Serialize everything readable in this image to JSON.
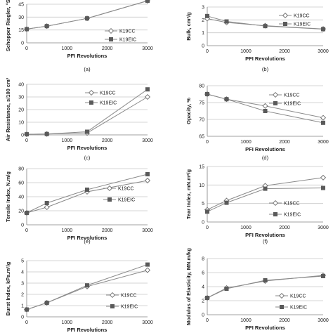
{
  "chart_data": [
    {
      "type": "line",
      "panel_label": "(a)",
      "xlabel": "PFI Revolutions",
      "ylabel": "Schopper Riegler, °SR",
      "xlim": [
        0,
        3000
      ],
      "ylim": [
        0,
        45
      ],
      "xticks": [
        "0",
        "1000",
        "2000",
        "3000"
      ],
      "yticks": [
        "0",
        "15",
        "30",
        "45"
      ],
      "x": [
        0,
        500,
        1500,
        3000
      ],
      "series": [
        {
          "name": "K19CC",
          "marker": "diamond",
          "values": [
            16,
            19.5,
            28.5,
            49
          ]
        },
        {
          "name": "K19EIC",
          "marker": "square",
          "values": [
            16,
            19.5,
            28.5,
            49
          ]
        }
      ],
      "legend": "right",
      "grid": true
    },
    {
      "type": "line",
      "panel_label": "(b)",
      "xlabel": "PFI Revolutions",
      "ylabel": "Bulk, cm³/g",
      "xlim": [
        0,
        3000
      ],
      "ylim": [
        0,
        3
      ],
      "xticks": [
        "0",
        "1000",
        "2000",
        "3000"
      ],
      "yticks": [
        "0",
        "1",
        "2",
        "3"
      ],
      "x": [
        0,
        500,
        1500,
        3000
      ],
      "series": [
        {
          "name": "K19CC",
          "marker": "diamond",
          "values": [
            2.1,
            1.8,
            1.55,
            1.3
          ]
        },
        {
          "name": "K19EIC",
          "marker": "square",
          "values": [
            2.3,
            1.88,
            1.52,
            1.28
          ]
        }
      ],
      "legend": "right",
      "grid": true
    },
    {
      "type": "line",
      "panel_label": "(c)",
      "xlabel": "PFI Revolutions",
      "ylabel": "Air Resistance, s/100 cm³",
      "xlim": [
        0,
        3000
      ],
      "ylim": [
        0,
        40
      ],
      "xticks": [
        "0",
        "1000",
        "2000",
        "3000"
      ],
      "yticks": [
        "0",
        "10",
        "20",
        "30",
        "40"
      ],
      "x": [
        0,
        500,
        1500,
        3000
      ],
      "series": [
        {
          "name": "K19CC",
          "marker": "diamond",
          "values": [
            0.5,
            0.7,
            1.5,
            30
          ]
        },
        {
          "name": "K19EIC",
          "marker": "square",
          "values": [
            0.5,
            0.7,
            2.5,
            36
          ]
        }
      ],
      "legend": "top-left",
      "grid": true
    },
    {
      "type": "line",
      "panel_label": "(d)",
      "xlabel": "PFI Revolutions",
      "ylabel": "Opacity, %",
      "xlim": [
        0,
        3000
      ],
      "ylim": [
        65,
        80
      ],
      "xticks": [
        "0",
        "1000",
        "2000",
        "3000"
      ],
      "yticks": [
        "65",
        "70",
        "75",
        "80"
      ],
      "x": [
        0,
        500,
        1500,
        3000
      ],
      "series": [
        {
          "name": "K19CC",
          "marker": "diamond",
          "values": [
            77.5,
            76,
            74,
            70.5
          ]
        },
        {
          "name": "K19EIC",
          "marker": "square",
          "values": [
            77.5,
            76,
            72.5,
            69
          ]
        }
      ],
      "legend": "right",
      "grid": true
    },
    {
      "type": "line",
      "panel_label": "(e)",
      "xlabel": "PFI Revolutions",
      "ylabel": "Tensile Index, N.m/g",
      "xlim": [
        0,
        3000
      ],
      "ylim": [
        0,
        80
      ],
      "xticks": [
        "0",
        "1000",
        "2000",
        "3000"
      ],
      "yticks": [
        "0",
        "20",
        "40",
        "60",
        "80"
      ],
      "x": [
        0,
        500,
        1500,
        3000
      ],
      "series": [
        {
          "name": "K19CC",
          "marker": "diamond",
          "values": [
            17,
            25,
            47,
            63
          ]
        },
        {
          "name": "K19EIC",
          "marker": "square",
          "values": [
            17,
            31,
            50,
            72
          ]
        }
      ],
      "legend": "right",
      "grid": true
    },
    {
      "type": "line",
      "panel_label": "(f)",
      "xlabel": "PFI Revolutions",
      "ylabel": "Tear Index, mN.m²/g",
      "xlim": [
        0,
        3000
      ],
      "ylim": [
        0,
        15
      ],
      "xticks": [
        "0",
        "1000",
        "2000",
        "3000"
      ],
      "yticks": [
        "0",
        "5",
        "10",
        "15"
      ],
      "x": [
        0,
        500,
        1500,
        3000
      ],
      "series": [
        {
          "name": "K19CC",
          "marker": "diamond",
          "values": [
            3.3,
            5.8,
            9.8,
            12
          ]
        },
        {
          "name": "K19EIC",
          "marker": "square",
          "values": [
            2.8,
            5.2,
            9,
            9.2
          ]
        }
      ],
      "legend": "bottom-right",
      "grid": true
    },
    {
      "type": "line",
      "panel_label": "",
      "xlabel": "PFI Revolutions",
      "ylabel": "Burst Index, kPa.m²/g",
      "xlim": [
        0,
        3000
      ],
      "ylim": [
        0,
        5
      ],
      "xticks": [
        "0",
        "1000",
        "2000",
        "3000"
      ],
      "yticks": [
        "0",
        "1",
        "2",
        "3",
        "4",
        "5"
      ],
      "x": [
        0,
        500,
        1500,
        3000
      ],
      "series": [
        {
          "name": "K19CC",
          "marker": "diamond",
          "values": [
            0.65,
            1.25,
            2.7,
            4.15
          ]
        },
        {
          "name": "K19EIC",
          "marker": "square",
          "values": [
            0.65,
            1.25,
            2.8,
            4.65
          ]
        }
      ],
      "legend": "bottom-right",
      "grid": true
    },
    {
      "type": "line",
      "panel_label": "",
      "xlabel": "PFI Revolutions",
      "ylabel": "Modulus of Elasticity, MN.m/kg",
      "xlim": [
        0,
        3000
      ],
      "ylim": [
        0,
        8
      ],
      "xticks": [
        "0",
        "1000",
        "2000",
        "3000"
      ],
      "yticks": [
        "0",
        "2",
        "4",
        "6",
        "8"
      ],
      "x": [
        0,
        500,
        1500,
        3000
      ],
      "series": [
        {
          "name": "K19CC",
          "marker": "diamond",
          "values": [
            2.4,
            3.8,
            4.8,
            5.6
          ]
        },
        {
          "name": "K19EIC",
          "marker": "square",
          "values": [
            2.4,
            3.7,
            4.9,
            5.5
          ]
        }
      ],
      "legend": "bottom-right",
      "grid": true
    }
  ],
  "colors": {
    "series_line": "#8a8a8a",
    "diamond_marker_fill": "#ffffff",
    "diamond_marker_stroke": "#6b6b6b",
    "square_marker_fill": "#5a5a5a",
    "gridline": "#c8c8c8",
    "axis": "#808080",
    "background": "#ffffff"
  }
}
